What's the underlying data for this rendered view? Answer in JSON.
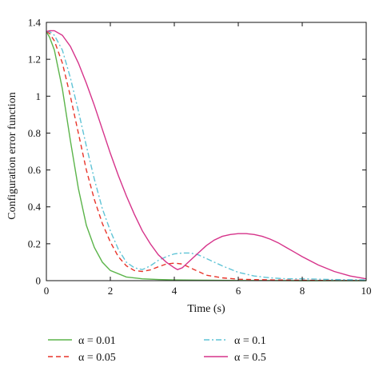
{
  "chart_data": {
    "type": "line",
    "xlabel": "Time (s)",
    "ylabel": "Configuration error function",
    "xlim": [
      0,
      10
    ],
    "ylim": [
      0,
      1.4
    ],
    "xticks": [
      0,
      2,
      4,
      6,
      8,
      10
    ],
    "xtick_labels": [
      "0",
      "2",
      "4",
      "6",
      "8",
      "10"
    ],
    "yticks": [
      0,
      0.2,
      0.4,
      0.6,
      0.8,
      1,
      1.2,
      1.4
    ],
    "ytick_labels": [
      "0",
      "0.2",
      "0.4",
      "0.6",
      "0.8",
      "1",
      "1.2",
      "1.4"
    ],
    "grid": false,
    "legend_position": "bottom",
    "series": [
      {
        "name": "α = 0.01",
        "color": "#5bb44a",
        "dash": "solid",
        "x": [
          0,
          0.1,
          0.25,
          0.5,
          0.75,
          1,
          1.25,
          1.5,
          1.75,
          2,
          2.5,
          3,
          3.5,
          4,
          5,
          6,
          7,
          8,
          9,
          10
        ],
        "y": [
          1.35,
          1.32,
          1.25,
          1.04,
          0.76,
          0.5,
          0.3,
          0.18,
          0.1,
          0.055,
          0.02,
          0.01,
          0.006,
          0.004,
          0.002,
          0.001,
          0.001,
          0,
          0,
          0
        ]
      },
      {
        "name": "α = 0.05",
        "color": "#e8342a",
        "dash": "dashed",
        "x": [
          0,
          0.1,
          0.25,
          0.5,
          0.75,
          1,
          1.25,
          1.5,
          1.75,
          2,
          2.25,
          2.5,
          2.75,
          3,
          3.25,
          3.5,
          3.75,
          4,
          4.25,
          4.5,
          4.75,
          5,
          5.5,
          6,
          7,
          8,
          9,
          10
        ],
        "y": [
          1.35,
          1.34,
          1.3,
          1.18,
          1.0,
          0.8,
          0.6,
          0.44,
          0.31,
          0.21,
          0.13,
          0.08,
          0.055,
          0.05,
          0.058,
          0.075,
          0.09,
          0.095,
          0.09,
          0.07,
          0.05,
          0.03,
          0.015,
          0.008,
          0.004,
          0.002,
          0.001,
          0.001
        ]
      },
      {
        "name": "α = 0.1",
        "color": "#5fc4d6",
        "dash": "dashdot",
        "x": [
          0,
          0.1,
          0.25,
          0.5,
          0.75,
          1,
          1.25,
          1.5,
          1.75,
          2,
          2.25,
          2.5,
          2.75,
          3,
          3.25,
          3.5,
          3.75,
          4,
          4.25,
          4.5,
          4.75,
          5,
          5.5,
          6,
          6.5,
          7,
          7.5,
          8,
          9,
          10
        ],
        "y": [
          1.35,
          1.35,
          1.33,
          1.25,
          1.1,
          0.92,
          0.73,
          0.55,
          0.39,
          0.27,
          0.17,
          0.1,
          0.07,
          0.06,
          0.08,
          0.11,
          0.13,
          0.145,
          0.15,
          0.15,
          0.14,
          0.12,
          0.08,
          0.045,
          0.025,
          0.015,
          0.01,
          0.01,
          0.006,
          0.004
        ]
      },
      {
        "name": "α = 0.5",
        "color": "#d6338a",
        "dash": "solid",
        "x": [
          0,
          0.1,
          0.25,
          0.5,
          0.75,
          1,
          1.25,
          1.5,
          1.75,
          2,
          2.25,
          2.5,
          2.75,
          3,
          3.25,
          3.5,
          3.75,
          4,
          4.1,
          4.25,
          4.5,
          4.75,
          5,
          5.25,
          5.5,
          5.75,
          6,
          6.25,
          6.5,
          6.75,
          7,
          7.25,
          7.5,
          7.75,
          8,
          8.5,
          9,
          9.5,
          10
        ],
        "y": [
          1.35,
          1.355,
          1.355,
          1.33,
          1.27,
          1.18,
          1.07,
          0.95,
          0.82,
          0.69,
          0.57,
          0.46,
          0.36,
          0.27,
          0.2,
          0.14,
          0.1,
          0.07,
          0.06,
          0.07,
          0.11,
          0.15,
          0.19,
          0.22,
          0.24,
          0.25,
          0.255,
          0.255,
          0.25,
          0.24,
          0.225,
          0.205,
          0.18,
          0.155,
          0.13,
          0.085,
          0.05,
          0.025,
          0.01
        ]
      }
    ]
  }
}
